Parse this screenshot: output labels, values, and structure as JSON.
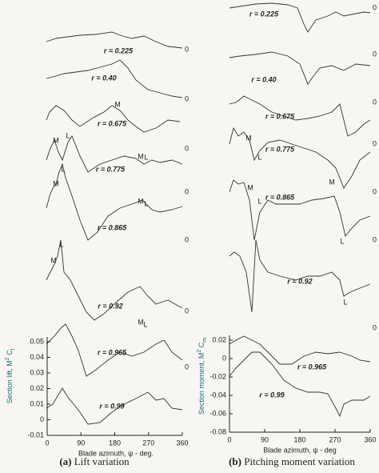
{
  "panels": [
    {
      "caption_tag": "(a)",
      "caption": "Lift variation",
      "y_label": "Section lift, M",
      "y_label_sup": "2",
      "y_label_c": " C",
      "y_label_sub": "l",
      "x_label": "Blade azimuth, ψ - deg.",
      "xlim": [
        0,
        360
      ],
      "xticks": [
        0,
        90,
        180,
        270,
        360
      ],
      "ylim": [
        -0.01,
        0.05
      ],
      "yticks": [
        0.05,
        0.04,
        0.03,
        0.02,
        0.01,
        0,
        -0.01
      ],
      "traces": [
        "r = 0.225",
        "r = 0.40",
        "r = 0.675",
        "r = 0.775",
        "r = 0.865",
        "r = 0.92",
        "r = 0.965",
        "r = 0.99"
      ],
      "zero_labels": [
        "0",
        "0",
        "0",
        "0",
        "0",
        "0",
        "0"
      ],
      "peak_labels": [
        "M",
        "M",
        "L",
        "M",
        "L",
        "L",
        "M",
        "M",
        "L",
        "L",
        "M",
        "M",
        "L"
      ]
    },
    {
      "caption_tag": "(b)",
      "caption": "Pitching moment variation",
      "y_label": "Section moment, M",
      "y_label_sup": "2",
      "y_label_c": " C",
      "y_label_sub": "m",
      "x_label": "Blade azimuth, ψ - deg",
      "xlim": [
        0,
        360
      ],
      "xticks": [
        0,
        90,
        180,
        270,
        360
      ],
      "ylim": [
        -0.08,
        0.02
      ],
      "yticks": [
        0.02,
        0,
        -0.02,
        -0.04,
        -0.06,
        -0.08
      ],
      "traces": [
        "r = 0.225",
        "r = 0.40",
        "r = 0.675",
        "r = 0.775",
        "r = 0.865",
        "r = 0.92",
        "r = 0.965",
        "r = 0.99"
      ],
      "zero_labels": [
        "0",
        "0",
        "0",
        "0",
        "0",
        "0",
        "0"
      ],
      "peak_labels": [
        "M",
        "L",
        "M",
        "M",
        "L",
        "L",
        "L"
      ]
    }
  ]
}
